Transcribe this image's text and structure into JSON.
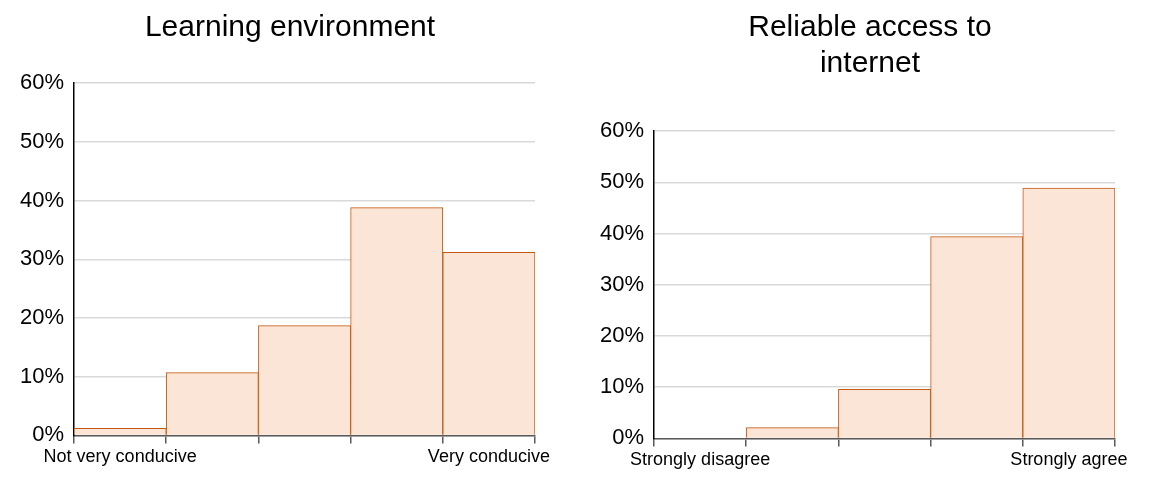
{
  "chart_data": [
    {
      "type": "bar",
      "title": "Learning environment",
      "categories": [
        "Not very conducive",
        null,
        null,
        null,
        "Very conducive"
      ],
      "values": [
        1.2,
        10.7,
        18.7,
        38.8,
        31.2
      ],
      "color": "#fbe5d6",
      "ylim": [
        0,
        60
      ],
      "yticks": [
        {
          "value": 0,
          "label": "0%"
        },
        {
          "value": 10,
          "label": "10%"
        },
        {
          "value": 20,
          "label": "20%"
        },
        {
          "value": 30,
          "label": "30%"
        },
        {
          "value": 40,
          "label": "40%"
        },
        {
          "value": 50,
          "label": "50%"
        },
        {
          "value": 60,
          "label": "60%"
        }
      ],
      "grid": "y",
      "legend": false
    },
    {
      "type": "bar",
      "title": "Reliable access to internet",
      "categories": [
        "Strongly disagree",
        null,
        null,
        null,
        "Strongly agree"
      ],
      "values": [
        0,
        2.1,
        9.6,
        39.4,
        48.9
      ],
      "color": "#fbe5d6",
      "ylim": [
        0,
        60
      ],
      "yticks": [
        {
          "value": 0,
          "label": "0%"
        },
        {
          "value": 10,
          "label": "10%"
        },
        {
          "value": 20,
          "label": "20%"
        },
        {
          "value": 30,
          "label": "30%"
        },
        {
          "value": 40,
          "label": "40%"
        },
        {
          "value": 50,
          "label": "50%"
        },
        {
          "value": 60,
          "label": "60%"
        }
      ],
      "grid": "y",
      "legend": false
    }
  ]
}
